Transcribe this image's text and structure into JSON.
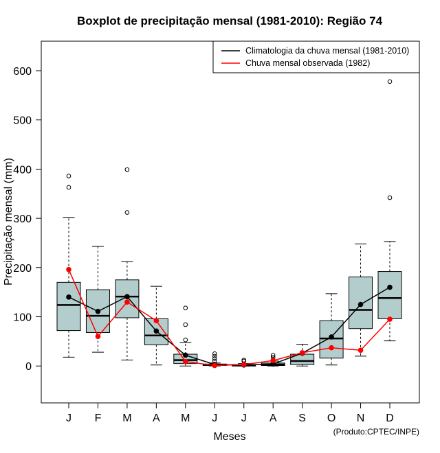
{
  "chart_data": {
    "type": "boxplot",
    "title": "Boxplot de precipitação mensal (1981-2010): Região 74",
    "xlabel": "Meses",
    "ylabel": "Precipitação mensal (mm)",
    "ylim": [
      -75,
      660
    ],
    "yticks": [
      0,
      100,
      200,
      300,
      400,
      500,
      600
    ],
    "categories": [
      "J",
      "F",
      "M",
      "A",
      "M",
      "J",
      "J",
      "A",
      "S",
      "O",
      "N",
      "D"
    ],
    "boxes": [
      {
        "whisker_low": 18,
        "q1": 72,
        "median": 124,
        "q3": 170,
        "whisker_high": 302,
        "outliers": [
          363,
          386
        ]
      },
      {
        "whisker_low": 28,
        "q1": 68,
        "median": 102,
        "q3": 155,
        "whisker_high": 243,
        "outliers": []
      },
      {
        "whisker_low": 12,
        "q1": 98,
        "median": 141,
        "q3": 175,
        "whisker_high": 212,
        "outliers": [
          312,
          399
        ]
      },
      {
        "whisker_low": 2,
        "q1": 43,
        "median": 62,
        "q3": 96,
        "whisker_high": 162,
        "outliers": []
      },
      {
        "whisker_low": 0,
        "q1": 5,
        "median": 12,
        "q3": 24,
        "whisker_high": 47,
        "outliers": [
          53,
          84,
          118
        ]
      },
      {
        "whisker_low": 0,
        "q1": 1,
        "median": 2,
        "q3": 4,
        "whisker_high": 6,
        "outliers": [
          10,
          15,
          20,
          25
        ]
      },
      {
        "whisker_low": 0,
        "q1": 0,
        "median": 1,
        "q3": 3,
        "whisker_high": 5,
        "outliers": [
          10,
          12
        ]
      },
      {
        "whisker_low": 0,
        "q1": 1,
        "median": 3,
        "q3": 6,
        "whisker_high": 10,
        "outliers": [
          13,
          18,
          22
        ]
      },
      {
        "whisker_low": 0,
        "q1": 3,
        "median": 10,
        "q3": 24,
        "whisker_high": 44,
        "outliers": []
      },
      {
        "whisker_low": 2,
        "q1": 16,
        "median": 56,
        "q3": 92,
        "whisker_high": 147,
        "outliers": []
      },
      {
        "whisker_low": 20,
        "q1": 76,
        "median": 114,
        "q3": 181,
        "whisker_high": 248,
        "outliers": []
      },
      {
        "whisker_low": 51,
        "q1": 96,
        "median": 138,
        "q3": 192,
        "whisker_high": 253,
        "outliers": [
          342,
          578
        ]
      }
    ],
    "series": [
      {
        "name": "Climatologia da chuva mensal (1981-2010)",
        "color": "#000000",
        "values": [
          140,
          111,
          141,
          71,
          22,
          3,
          2,
          4,
          26,
          59,
          125,
          160
        ]
      },
      {
        "name": "Chuva mensal observada (1982)",
        "color": "#ff0000",
        "values": [
          196,
          60,
          130,
          92,
          9,
          1,
          3,
          11,
          27,
          37,
          32,
          95
        ]
      }
    ],
    "legend_position": "top-right",
    "box_fill": "#b3cccc",
    "credit": "(Produto:CPTEC/INPE)"
  }
}
